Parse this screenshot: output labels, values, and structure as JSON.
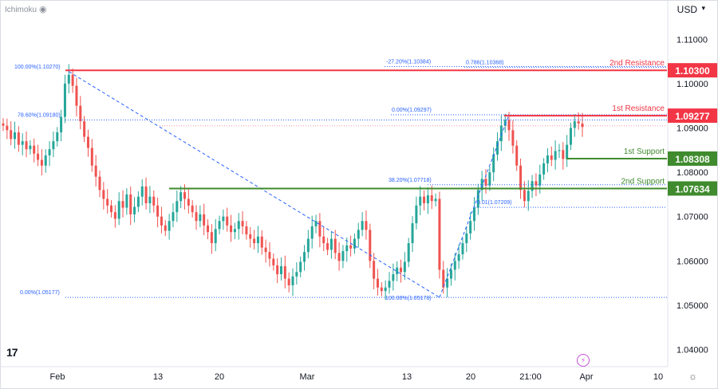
{
  "header": {
    "indicator": "Ichimoku",
    "currency": "USD"
  },
  "icons": {
    "visibility": "eye-icon",
    "logo": "tradingview-logo-icon",
    "bolt": "lightning-icon",
    "settings": "gear-icon",
    "caret": "caret-down-icon"
  },
  "colors": {
    "up": "#26a69a",
    "down": "#ef5350",
    "resistance": "#f23645",
    "support": "#3f8b2e",
    "fib": "#2962ff",
    "axis_bg": "#ffffff"
  },
  "chart_data": {
    "type": "candlestick",
    "ylim": [
      1.0365,
      1.1185
    ],
    "y_ticks": [
      "1.11000",
      "1.10000",
      "1.09000",
      "1.08000",
      "1.07000",
      "1.06000",
      "1.05000",
      "1.04000"
    ],
    "x_ticks": [
      "Feb",
      "13",
      "20",
      "Mar",
      "13",
      "20",
      "21:00",
      "Apr",
      "10"
    ],
    "series": [
      {
        "values": [
          1.0905,
          1.0895,
          1.0875,
          1.089,
          1.0862,
          1.087,
          1.0852,
          1.086,
          1.0842,
          1.0828,
          1.0815,
          1.0838,
          1.0852,
          1.087,
          1.089,
          1.0925,
          1.1,
          1.102,
          1.0995,
          1.095,
          1.0915,
          1.088,
          1.0855,
          1.0815,
          1.079,
          1.076,
          1.074,
          1.0725,
          1.071,
          1.0695,
          1.0735,
          1.072,
          1.075,
          1.0705,
          1.0722,
          1.0745,
          1.0768,
          1.073,
          1.0745,
          1.0725,
          1.07,
          1.068,
          1.0668,
          1.069,
          1.071,
          1.0735,
          1.0755,
          1.074,
          1.0725,
          1.071,
          1.069,
          1.0705,
          1.068,
          1.0665,
          1.064,
          1.0672,
          1.069,
          1.07,
          1.068,
          1.0665,
          1.0672,
          1.069,
          1.0678,
          1.066,
          1.065,
          1.064,
          1.0655,
          1.063,
          1.062,
          1.0605,
          1.059,
          1.057,
          1.0588,
          1.056,
          1.0545,
          1.0565,
          1.0575,
          1.0598,
          1.062,
          1.065,
          1.0678,
          1.069,
          1.0655,
          1.064,
          1.0625,
          1.065,
          1.0618,
          1.06,
          1.0622,
          1.0635,
          1.0628,
          1.065,
          1.067,
          1.069,
          1.067,
          1.06,
          1.056,
          1.054,
          1.0532,
          1.054,
          1.0555,
          1.057,
          1.0585,
          1.0575,
          1.0598,
          1.064,
          1.0685,
          1.0725,
          1.0745,
          1.073,
          1.0748,
          1.0735,
          1.074,
          1.058,
          1.054,
          1.056,
          1.058,
          1.06,
          1.0615,
          1.064,
          1.0662,
          1.069,
          1.072,
          1.076,
          1.0785,
          1.077,
          1.08,
          1.084,
          1.087,
          1.0905,
          1.0918,
          1.0895,
          1.086,
          1.0815,
          1.076,
          1.0735,
          1.0758,
          1.078,
          1.077,
          1.0795,
          1.082,
          1.0838,
          1.0828,
          1.0848,
          1.085,
          1.083,
          1.0862,
          1.09,
          1.0915,
          1.091,
          1.0902
        ]
      }
    ],
    "horizontal_levels": [
      {
        "label": "2nd Resistance",
        "value": 1.103,
        "price_tag": "1.10300",
        "color": "#f23645"
      },
      {
        "label": "1st Resistance",
        "value": 1.09277,
        "price_tag": "1.09277",
        "color": "#f23645"
      },
      {
        "label": "1st Support",
        "value": 1.08308,
        "price_tag": "1.08308",
        "color": "#3f8b2e"
      },
      {
        "label": "2nd Support",
        "value": 1.07634,
        "price_tag": "1.07634",
        "color": "#3f8b2e"
      }
    ],
    "fib_labels": [
      {
        "text": "100.00%(1.10270)",
        "value": 1.1027
      },
      {
        "text": "78.60%(1.09180)",
        "value": 1.0918
      },
      {
        "text": "0.00%(1.05177)",
        "value": 1.05177
      },
      {
        "text": "-27.20%(1.10384)",
        "value": 1.10384
      },
      {
        "text": "0.786(1.10368)",
        "value": 1.10368
      },
      {
        "text": "0.00%(1.09297)",
        "value": 1.09297
      },
      {
        "text": "38.20%(1.07718)",
        "value": 1.07718
      },
      {
        "text": "0.01(1.07209)",
        "value": 1.07209
      },
      {
        "text": "100.00%(1.05178)",
        "value": 1.05178
      }
    ]
  }
}
